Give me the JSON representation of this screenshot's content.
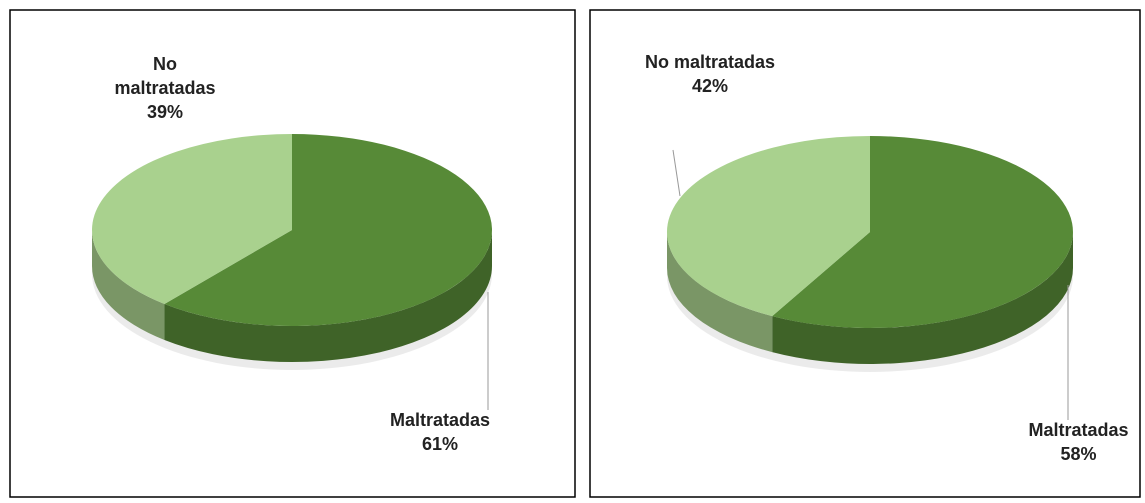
{
  "chart_data": [
    {
      "type": "pie",
      "categories": [
        "Maltratadas",
        "No maltratadas"
      ],
      "values": [
        61,
        39
      ],
      "value_labels": [
        "61%",
        "39%"
      ],
      "colors": [
        "#578a37",
        "#a9d18e"
      ]
    },
    {
      "type": "pie",
      "categories": [
        "Maltratadas",
        "No maltratadas"
      ],
      "values": [
        58,
        42
      ],
      "value_labels": [
        "58%",
        "42%"
      ],
      "colors": [
        "#578a37",
        "#a9d18e"
      ]
    }
  ]
}
